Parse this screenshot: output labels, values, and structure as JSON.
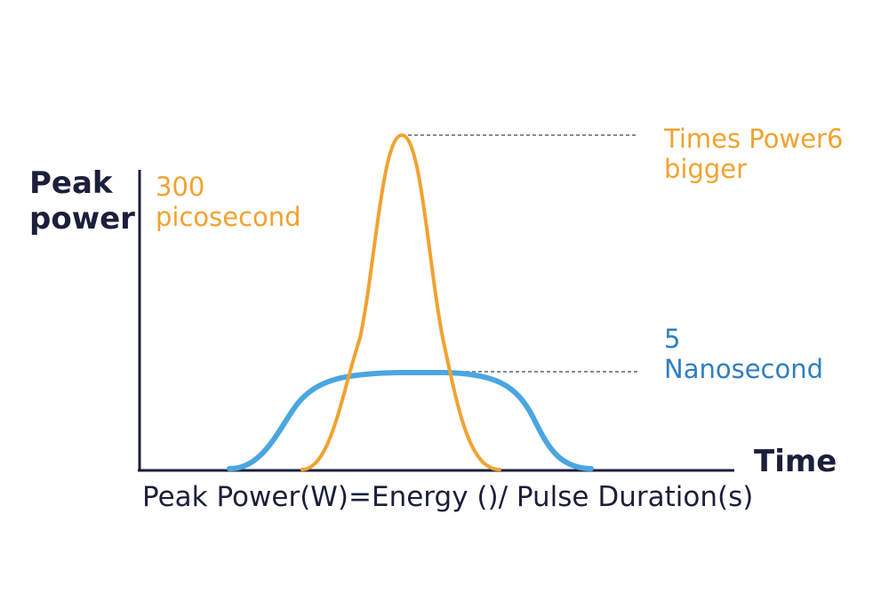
{
  "axes": {
    "y_title": [
      "Peak",
      "power"
    ],
    "x_title": "Time"
  },
  "labels": {
    "picosecond": [
      "300",
      "picosecond"
    ],
    "power_ratio": [
      "Times Power6",
      "bigger"
    ],
    "nanosecond": [
      "5",
      "Nanosecond"
    ]
  },
  "formula": "Peak Power(W)=Energy ()/ Pulse Duration(s)",
  "colors": {
    "picosecond_curve": "#f2a230",
    "nanosecond_curve": "#4aa6e0",
    "nanosecond_text": "#2f7fc1",
    "axis": "#1b1f3b",
    "guide_line": "#8a8a8a"
  }
}
